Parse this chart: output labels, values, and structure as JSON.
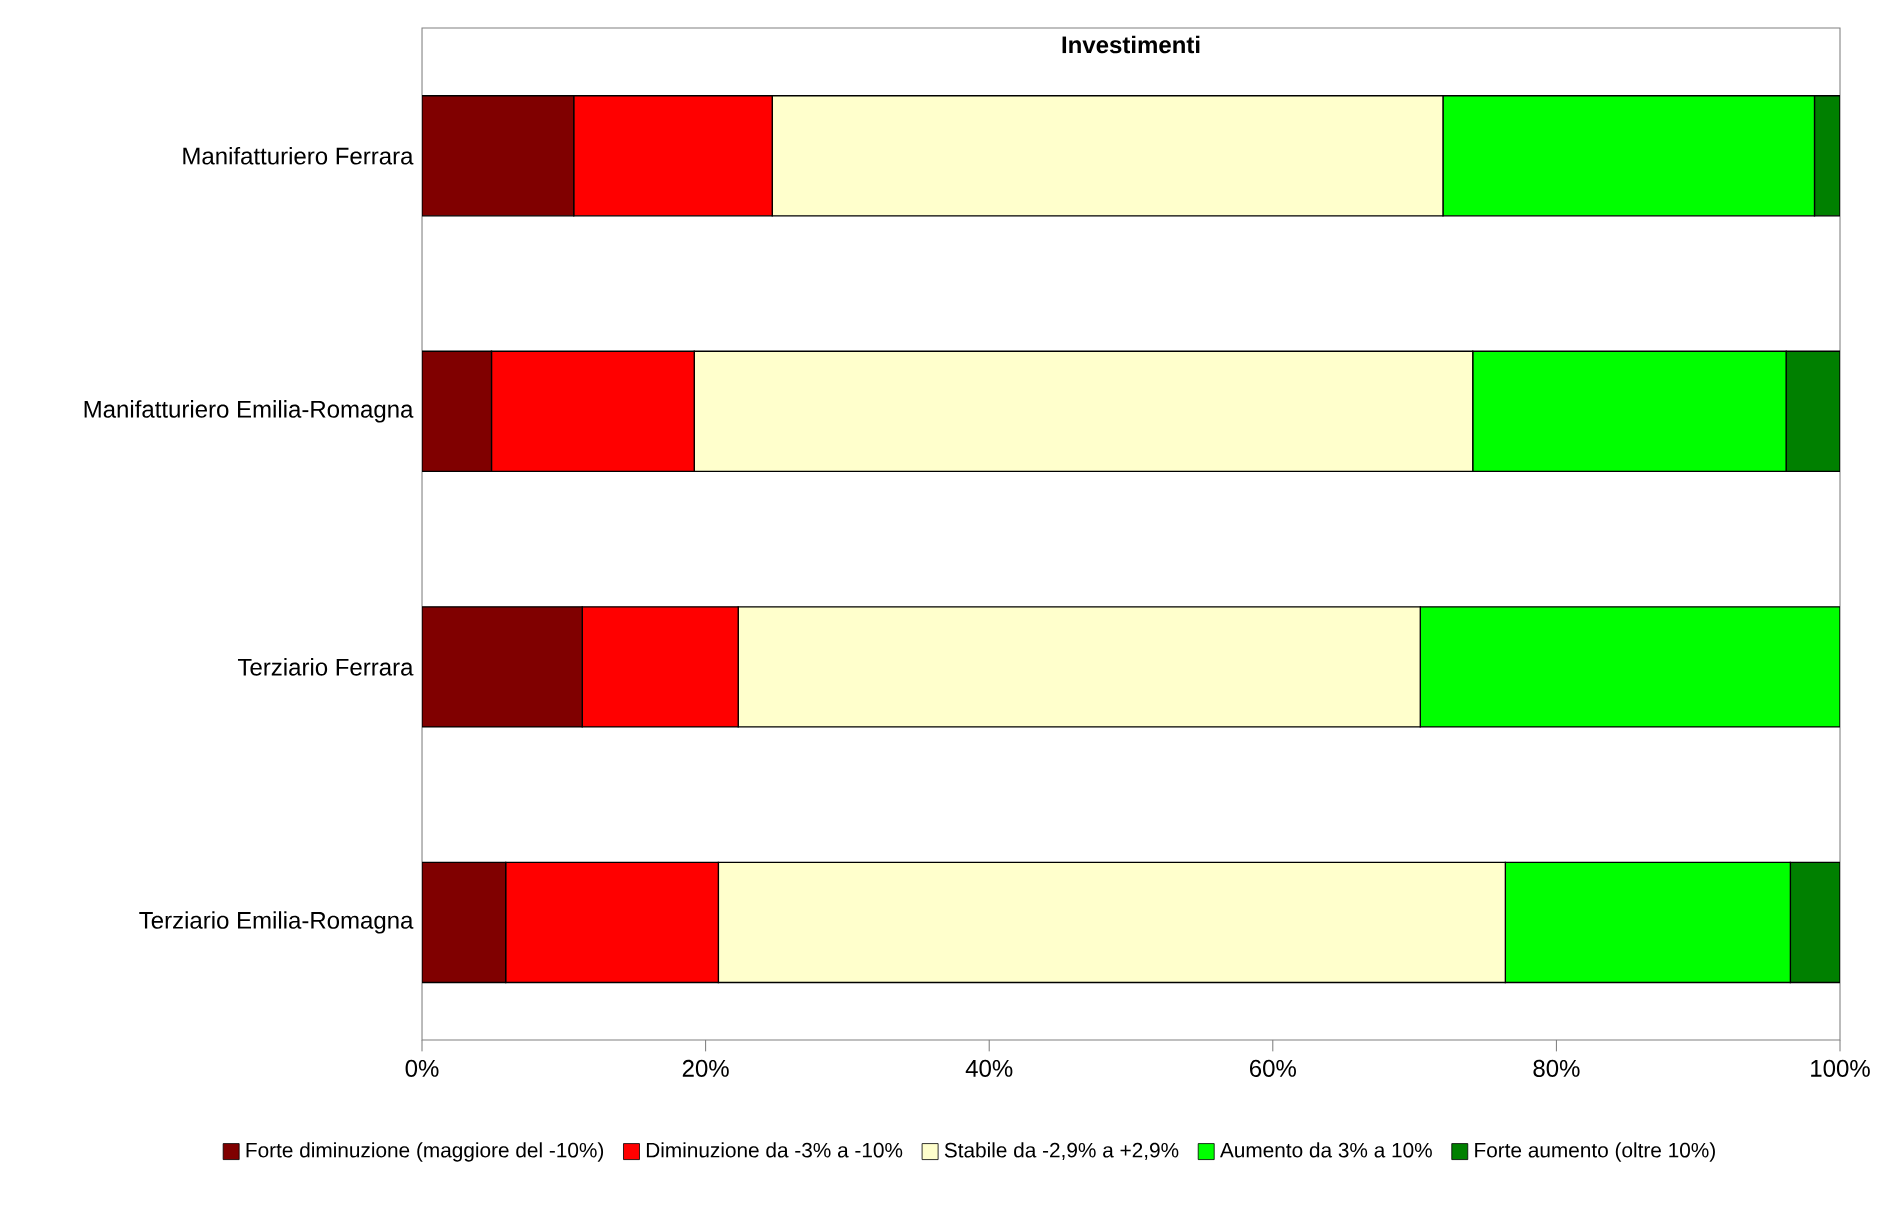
{
  "chart_data": {
    "type": "bar",
    "orientation": "horizontal",
    "stacked": true,
    "title": "Investimenti",
    "categories": [
      "Manifatturiero Ferrara",
      "Manifatturiero Emilia-Romagna",
      "Terziario Ferrara",
      "Terziario Emilia-Romagna"
    ],
    "series": [
      {
        "name": "Forte diminuzione (maggiore del -10%)",
        "color": "#800000",
        "values": [
          10.7,
          4.9,
          11.3,
          5.9
        ]
      },
      {
        "name": "Diminuzione da -3% a -10%",
        "color": "#ff0000",
        "values": [
          14.0,
          14.3,
          11.0,
          15.0
        ]
      },
      {
        "name": "Stabile da -2,9% a +2,9%",
        "color": "#ffffcc",
        "values": [
          47.3,
          54.9,
          48.1,
          55.5
        ]
      },
      {
        "name": "Aumento da 3% a 10%",
        "color": "#00ff00",
        "values": [
          26.2,
          22.1,
          29.6,
          20.1
        ]
      },
      {
        "name": "Forte aumento (oltre 10%)",
        "color": "#008000",
        "values": [
          1.8,
          3.8,
          0,
          3.5
        ]
      }
    ],
    "xlim": [
      0,
      100
    ],
    "xticks": [
      {
        "value": 0,
        "label": "0%"
      },
      {
        "value": 20,
        "label": "20%"
      },
      {
        "value": 40,
        "label": "40%"
      },
      {
        "value": 60,
        "label": "60%"
      },
      {
        "value": 80,
        "label": "80%"
      },
      {
        "value": 100,
        "label": "100%"
      }
    ],
    "legend": "bottom",
    "grid": false
  }
}
